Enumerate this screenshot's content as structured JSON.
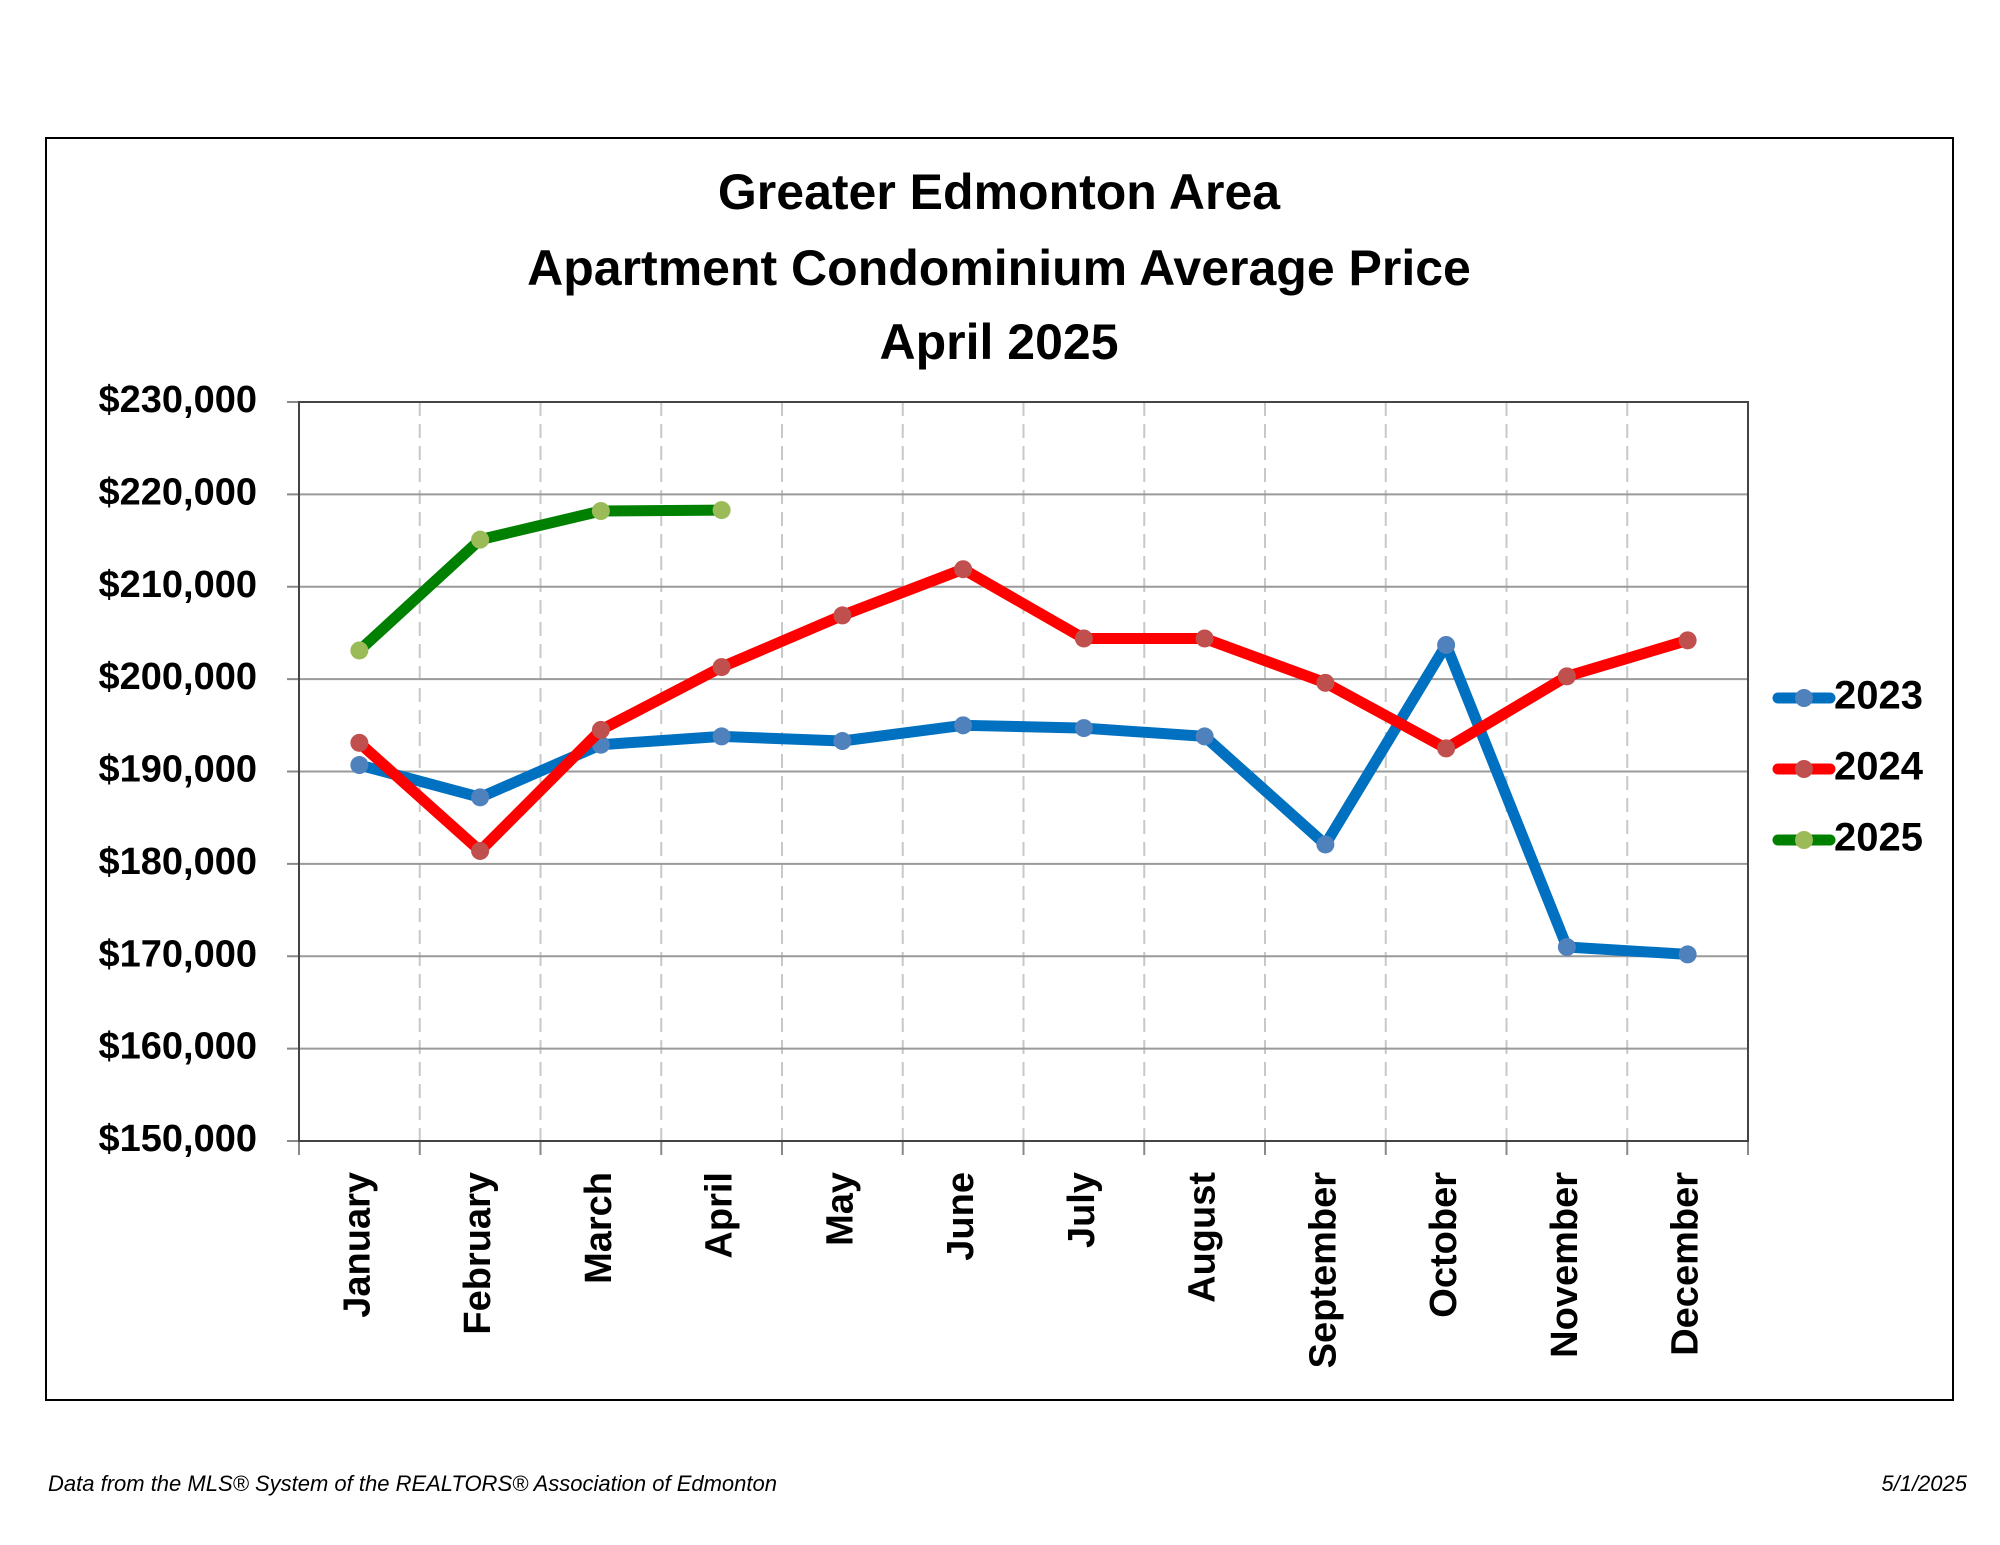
{
  "chart_data": {
    "type": "line",
    "title": [
      "Greater Edmonton Area",
      "Apartment Condominium Average Price",
      "April 2025"
    ],
    "categories": [
      "January",
      "February",
      "March",
      "April",
      "May",
      "June",
      "July",
      "August",
      "September",
      "October",
      "November",
      "December"
    ],
    "series": [
      {
        "name": "2023",
        "color": "#0070c0",
        "marker_color": "#4f81bd",
        "values": [
          190700,
          187200,
          192900,
          193800,
          193300,
          195000,
          194700,
          193800,
          182100,
          203700,
          171000,
          170200
        ]
      },
      {
        "name": "2024",
        "color": "#ff0000",
        "marker_color": "#c0504d",
        "values": [
          193100,
          181400,
          194500,
          201300,
          206900,
          211900,
          204400,
          204400,
          199600,
          192500,
          200300,
          204200
        ]
      },
      {
        "name": "2025",
        "color": "#008000",
        "marker_color": "#9bbb59",
        "values": [
          203100,
          215100,
          218200,
          218300,
          null,
          null,
          null,
          null,
          null,
          null,
          null,
          null
        ]
      }
    ],
    "ylim": [
      150000,
      230000
    ],
    "yticks": [
      {
        "value": 150000,
        "label": "$150,000"
      },
      {
        "value": 160000,
        "label": "$160,000"
      },
      {
        "value": 170000,
        "label": "$170,000"
      },
      {
        "value": 180000,
        "label": "$180,000"
      },
      {
        "value": 190000,
        "label": "$190,000"
      },
      {
        "value": 200000,
        "label": "$200,000"
      },
      {
        "value": 210000,
        "label": "$210,000"
      },
      {
        "value": 220000,
        "label": "$220,000"
      },
      {
        "value": 230000,
        "label": "$230,000"
      }
    ],
    "grid": true,
    "legend": "right",
    "source": "Data from the MLS® System of the REALTORS® Association of Edmonton",
    "date": "5/1/2025"
  }
}
